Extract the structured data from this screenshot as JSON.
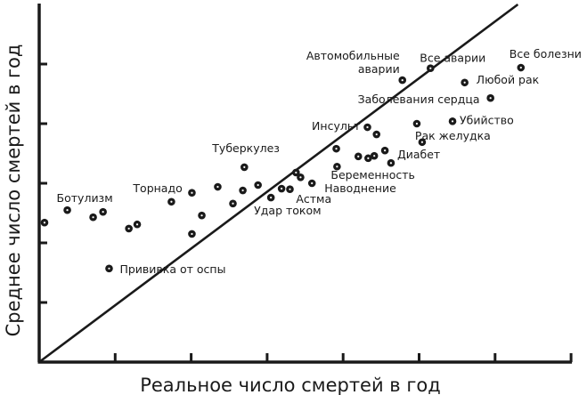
{
  "chart_data": {
    "type": "scatter",
    "title": "",
    "xlabel": "Реальное число смертей в год",
    "ylabel": "Среднее число смертей в год",
    "xlim": [
      0,
      7
    ],
    "ylim": [
      0,
      6
    ],
    "xticks": [
      1,
      2,
      3,
      4,
      5,
      6,
      7
    ],
    "yticks": [
      1,
      2,
      3,
      4,
      5
    ],
    "tick_labels_shown": false,
    "grid": false,
    "reference_line": [
      [
        0,
        0
      ],
      [
        6.3,
        6
      ]
    ],
    "colors": {
      "points": "#1a1a1a",
      "axis": "#1a1a1a"
    },
    "points": [
      {
        "x": 0.07,
        "y": 2.34,
        "label": ""
      },
      {
        "x": 0.37,
        "y": 2.55,
        "label": "Ботулизм"
      },
      {
        "x": 0.71,
        "y": 2.43,
        "label": ""
      },
      {
        "x": 0.84,
        "y": 2.52,
        "label": ""
      },
      {
        "x": 0.92,
        "y": 1.57,
        "label": "Прививка от оспы"
      },
      {
        "x": 1.18,
        "y": 2.24,
        "label": ""
      },
      {
        "x": 1.29,
        "y": 2.31,
        "label": ""
      },
      {
        "x": 1.74,
        "y": 2.69,
        "label": "Торнадо"
      },
      {
        "x": 2.01,
        "y": 2.84,
        "label": ""
      },
      {
        "x": 2.14,
        "y": 2.46,
        "label": ""
      },
      {
        "x": 2.01,
        "y": 2.15,
        "label": ""
      },
      {
        "x": 2.35,
        "y": 2.94,
        "label": ""
      },
      {
        "x": 2.7,
        "y": 3.27,
        "label": "Туберкулез"
      },
      {
        "x": 2.55,
        "y": 2.66,
        "label": ""
      },
      {
        "x": 2.68,
        "y": 2.88,
        "label": ""
      },
      {
        "x": 2.88,
        "y": 2.97,
        "label": ""
      },
      {
        "x": 3.05,
        "y": 2.76,
        "label": "Удар током"
      },
      {
        "x": 3.19,
        "y": 2.91,
        "label": ""
      },
      {
        "x": 3.3,
        "y": 2.9,
        "label": ""
      },
      {
        "x": 3.38,
        "y": 3.18,
        "label": "Астма"
      },
      {
        "x": 3.44,
        "y": 3.1,
        "label": ""
      },
      {
        "x": 3.59,
        "y": 3.0,
        "label": "Наводнение"
      },
      {
        "x": 3.92,
        "y": 3.28,
        "label": "Беременность"
      },
      {
        "x": 3.91,
        "y": 3.58,
        "label": ""
      },
      {
        "x": 4.32,
        "y": 3.94,
        "label": "Инсульт"
      },
      {
        "x": 4.44,
        "y": 3.82,
        "label": ""
      },
      {
        "x": 4.2,
        "y": 3.45,
        "label": ""
      },
      {
        "x": 4.33,
        "y": 3.42,
        "label": ""
      },
      {
        "x": 4.41,
        "y": 3.46,
        "label": ""
      },
      {
        "x": 4.55,
        "y": 3.55,
        "label": ""
      },
      {
        "x": 4.63,
        "y": 3.34,
        "label": "Диабет"
      },
      {
        "x": 4.97,
        "y": 4.0,
        "label": ""
      },
      {
        "x": 5.04,
        "y": 3.69,
        "label": "Рак желудка"
      },
      {
        "x": 5.44,
        "y": 4.04,
        "label": "Убийство"
      },
      {
        "x": 5.94,
        "y": 4.43,
        "label": "Заболевания сердца"
      },
      {
        "x": 5.6,
        "y": 4.69,
        "label": "Любой рак"
      },
      {
        "x": 6.34,
        "y": 4.94,
        "label": "Все болезни"
      },
      {
        "x": 5.15,
        "y": 4.93,
        "label": "Все аварии"
      },
      {
        "x": 4.78,
        "y": 4.73,
        "label": "Автомобильные аварии"
      }
    ]
  }
}
